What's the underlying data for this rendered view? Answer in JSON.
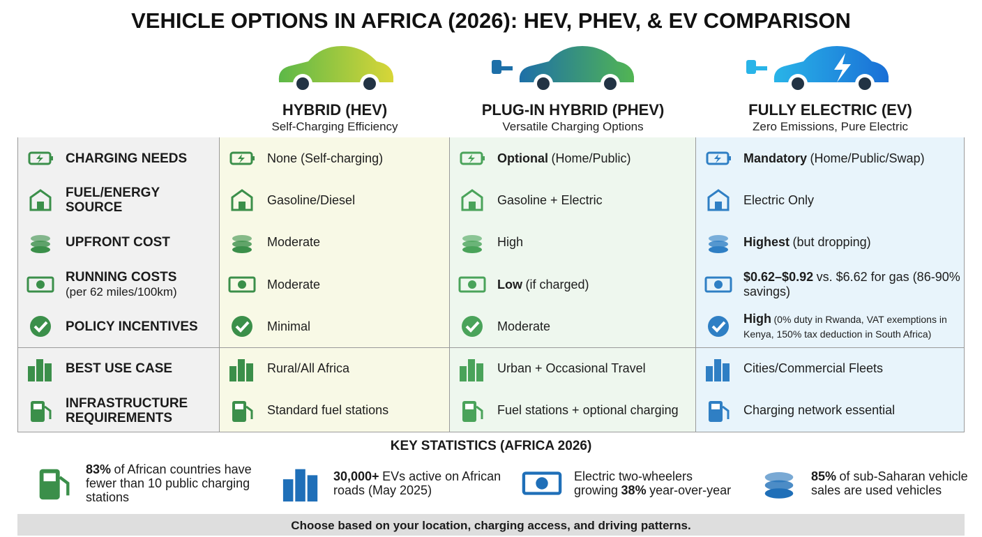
{
  "title": "VEHICLE OPTIONS IN AFRICA (2026): HEV, PHEV, & EV COMPARISON",
  "columns": [
    {
      "name": "HYBRID (HEV)",
      "subtitle": "Self-Charging Efficiency"
    },
    {
      "name": "PLUG-IN HYBRID (PHEV)",
      "subtitle": "Versatile Charging Options"
    },
    {
      "name": "FULLY ELECTRIC (EV)",
      "subtitle": "Zero Emissions, Pure Electric"
    }
  ],
  "rows": [
    {
      "label": {
        "title": "CHARGING NEEDS"
      },
      "cells": [
        [
          {
            "text": "None (Self-charging)"
          }
        ],
        [
          {
            "text": "Optional",
            "bold": true
          },
          {
            "text": "(Home/Public)"
          }
        ],
        [
          {
            "text": "Mandatory",
            "bold": true
          },
          {
            "text": "(Home/Public/Swap)"
          }
        ]
      ]
    },
    {
      "label": {
        "title": "FUEL/ENERGY SOURCE"
      },
      "cells": [
        [
          {
            "text": "Gasoline/Diesel"
          }
        ],
        [
          {
            "text": "Gasoline + Electric"
          }
        ],
        [
          {
            "text": "Electric Only"
          }
        ]
      ]
    },
    {
      "label": {
        "title": "UPFRONT COST"
      },
      "cells": [
        [
          {
            "text": "Moderate"
          }
        ],
        [
          {
            "text": "High"
          }
        ],
        [
          {
            "text": "Highest",
            "bold": true
          },
          {
            "text": "(but dropping)"
          }
        ]
      ]
    },
    {
      "label": {
        "title": "RUNNING COSTS",
        "note": "(per 62 miles/100km)"
      },
      "cells": [
        [
          {
            "text": "Moderate"
          }
        ],
        [
          {
            "text": "Low",
            "bold": true
          },
          {
            "text": "(if charged)"
          }
        ],
        [
          {
            "text": "$0.62–$0.92",
            "bold": true
          },
          {
            "text": "vs. $6.62 for gas (86-90% savings)"
          }
        ]
      ]
    },
    {
      "label": {
        "title": "POLICY INCENTIVES"
      },
      "cells": [
        [
          {
            "text": "Minimal"
          }
        ],
        [
          {
            "text": "Moderate"
          }
        ],
        [
          {
            "text": "High",
            "bold": true
          },
          {
            "text": "(0% duty in Rwanda, VAT exemptions in Kenya, 150% tax deduction in South Africa)",
            "small": true
          }
        ]
      ]
    },
    {
      "label": {
        "title": "BEST USE CASE"
      },
      "cells": [
        [
          {
            "text": "Rural/All Africa"
          }
        ],
        [
          {
            "text": "Urban + Occasional Travel"
          }
        ],
        [
          {
            "text": "Cities/Commercial Fleets"
          }
        ]
      ]
    },
    {
      "label": {
        "title": "INFRASTRUCTURE REQUIREMENTS"
      },
      "cells": [
        [
          {
            "text": "Standard fuel stations"
          }
        ],
        [
          {
            "text": "Fuel stations + optional charging"
          }
        ],
        [
          {
            "text": "Charging network essential"
          }
        ]
      ]
    }
  ],
  "stats_title": "KEY STATISTICS (AFRICA 2026)",
  "stats": [
    [
      {
        "text": "83%",
        "bold": true
      },
      {
        "text": "of African countries have fewer than 10 public charging stations"
      }
    ],
    [
      {
        "text": "30,000+",
        "bold": true
      },
      {
        "text": "EVs active on African roads (May 2025)"
      }
    ],
    [
      {
        "text": "Electric two-wheelers growing"
      },
      {
        "text": "38%",
        "bold": true
      },
      {
        "text": "year-over-year"
      }
    ],
    [
      {
        "text": "85%",
        "bold": true
      },
      {
        "text": "of sub-Saharan vehicle sales are used vehicles"
      }
    ]
  ],
  "footer": "Choose based on your location, charging access, and driving patterns."
}
